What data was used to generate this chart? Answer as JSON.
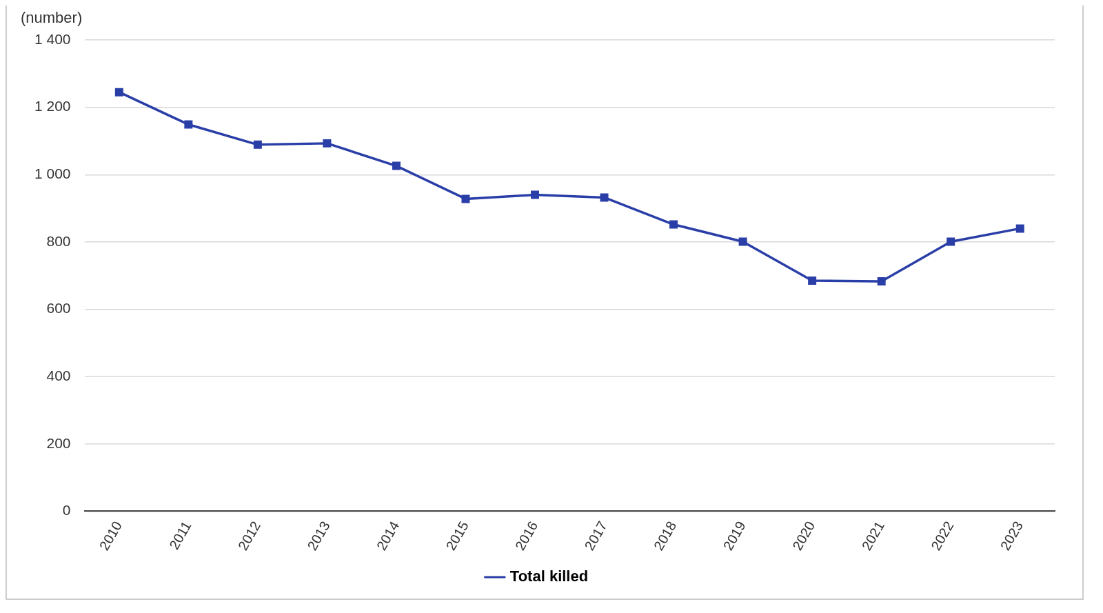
{
  "chart_data": {
    "type": "line",
    "ylabel": "(number)",
    "categories": [
      "2010",
      "2011",
      "2012",
      "2013",
      "2014",
      "2015",
      "2016",
      "2017",
      "2018",
      "2019",
      "2020",
      "2021",
      "2022",
      "2023"
    ],
    "series": [
      {
        "name": "Total killed",
        "color": "#2a3ea8",
        "values": [
          1245,
          1149,
          1089,
          1093,
          1026,
          928,
          940,
          932,
          852,
          801,
          685,
          683,
          801,
          840
        ]
      }
    ],
    "ylim": [
      0,
      1400
    ],
    "yticks": [
      0,
      200,
      400,
      600,
      800,
      {
        "value": 1000,
        "label": "1 000"
      },
      {
        "value": 1200,
        "label": "1 200"
      },
      {
        "value": 1400,
        "label": "1 400"
      }
    ],
    "grid": "y",
    "legend": "bottom",
    "marker": "square",
    "line_style": "solid"
  }
}
